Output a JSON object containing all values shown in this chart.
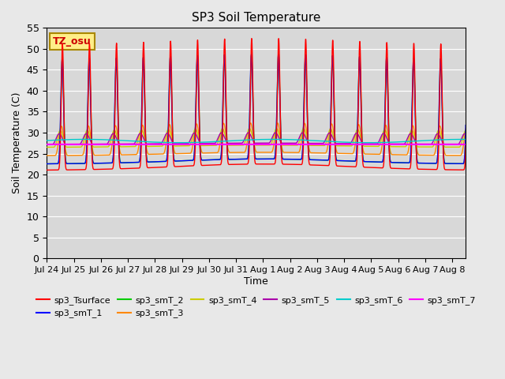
{
  "title": "SP3 Soil Temperature",
  "xlabel": "Time",
  "ylabel": "Soil Temperature (C)",
  "ylim": [
    0,
    55
  ],
  "tz_label": "TZ_osu",
  "series_colors": {
    "sp3_Tsurface": "#FF0000",
    "sp3_smT_1": "#0000FF",
    "sp3_smT_2": "#00CC00",
    "sp3_smT_3": "#FF8800",
    "sp3_smT_4": "#CCCC00",
    "sp3_smT_5": "#AA00AA",
    "sp3_smT_6": "#00CCCC",
    "sp3_smT_7": "#FF00FF"
  },
  "bg_color": "#D8D8D8",
  "grid_color": "#FFFFFF",
  "num_days": 15.5,
  "tick_labels": [
    "Jul 24",
    "Jul 25",
    "Jul 26",
    "Jul 27",
    "Jul 28",
    "Jul 29",
    "Jul 30",
    "Jul 31",
    "Aug 1",
    "Aug 2",
    "Aug 3",
    "Aug 4",
    "Aug 5",
    "Aug 6",
    "Aug 7",
    "Aug 8"
  ],
  "tick_positions": [
    0,
    1,
    2,
    3,
    4,
    5,
    6,
    7,
    8,
    9,
    10,
    11,
    12,
    13,
    14,
    15
  ],
  "surface_base": 29.0,
  "surface_amp": 21.0,
  "surface_min": 10.0,
  "peak_hour": 0.58,
  "sharpness": 8.0
}
